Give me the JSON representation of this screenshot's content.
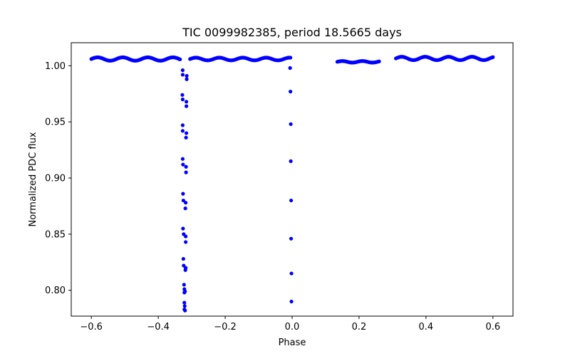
{
  "chart_data": {
    "type": "scatter",
    "title": "TIC 0099982385, period 18.5665 days",
    "xlabel": "Phase",
    "ylabel": "Normalized PDC flux",
    "xlim": [
      -0.66,
      0.66
    ],
    "ylim": [
      0.777,
      1.0205
    ],
    "xticks": [
      -0.6,
      -0.4,
      -0.2,
      0.0,
      0.2,
      0.4,
      0.6
    ],
    "xtick_labels": [
      "−0.6",
      "−0.4",
      "−0.2",
      "0.0",
      "0.2",
      "0.4",
      "0.6"
    ],
    "yticks": [
      0.8,
      0.85,
      0.9,
      0.95,
      1.0
    ],
    "ytick_labels": [
      "0.80",
      "0.85",
      "0.90",
      "0.95",
      "1.00"
    ],
    "grid": false,
    "series": [
      {
        "name": "flux",
        "color": "#0000ff",
        "marker": "circle",
        "baseline_segments": [
          {
            "x_start": -0.6,
            "x_end": -0.335,
            "level": 1.006,
            "amp": 0.0015,
            "cycle": 0.075
          },
          {
            "x_start": -0.305,
            "x_end": -0.005,
            "level": 1.006,
            "amp": 0.0012,
            "cycle": 0.07
          },
          {
            "x_start": 0.135,
            "x_end": 0.26,
            "level": 1.0035,
            "amp": 0.0007,
            "cycle": 0.06
          },
          {
            "x_start": 0.31,
            "x_end": 0.6,
            "level": 1.0065,
            "amp": 0.0015,
            "cycle": 0.07
          }
        ],
        "eclipse_points": [
          {
            "x": -0.327,
            "y": 0.996
          },
          {
            "x": -0.327,
            "y": 0.992
          },
          {
            "x": -0.328,
            "y": 0.974
          },
          {
            "x": -0.327,
            "y": 0.97
          },
          {
            "x": -0.327,
            "y": 0.947
          },
          {
            "x": -0.327,
            "y": 0.942
          },
          {
            "x": -0.327,
            "y": 0.917
          },
          {
            "x": -0.326,
            "y": 0.912
          },
          {
            "x": -0.326,
            "y": 0.886
          },
          {
            "x": -0.325,
            "y": 0.88
          },
          {
            "x": -0.326,
            "y": 0.855
          },
          {
            "x": -0.324,
            "y": 0.85
          },
          {
            "x": -0.325,
            "y": 0.828
          },
          {
            "x": -0.324,
            "y": 0.822
          },
          {
            "x": -0.323,
            "y": 0.805
          },
          {
            "x": -0.322,
            "y": 0.801
          },
          {
            "x": -0.322,
            "y": 0.798
          },
          {
            "x": -0.322,
            "y": 0.789
          },
          {
            "x": -0.321,
            "y": 0.786
          },
          {
            "x": -0.322,
            "y": 0.783
          },
          {
            "x": -0.32,
            "y": 0.782
          },
          {
            "x": -0.32,
            "y": 0.799
          },
          {
            "x": -0.319,
            "y": 0.818
          },
          {
            "x": -0.318,
            "y": 0.82
          },
          {
            "x": -0.318,
            "y": 0.843
          },
          {
            "x": -0.318,
            "y": 0.848
          },
          {
            "x": -0.319,
            "y": 0.873
          },
          {
            "x": -0.318,
            "y": 0.878
          },
          {
            "x": -0.317,
            "y": 0.905
          },
          {
            "x": -0.317,
            "y": 0.91
          },
          {
            "x": -0.317,
            "y": 0.936
          },
          {
            "x": -0.316,
            "y": 0.94
          },
          {
            "x": -0.316,
            "y": 0.964
          },
          {
            "x": -0.316,
            "y": 0.968
          },
          {
            "x": -0.315,
            "y": 0.988
          },
          {
            "x": -0.315,
            "y": 0.991
          },
          {
            "x": -0.006,
            "y": 0.998
          },
          {
            "x": -0.005,
            "y": 0.977
          },
          {
            "x": -0.004,
            "y": 0.948
          },
          {
            "x": -0.004,
            "y": 0.915
          },
          {
            "x": -0.003,
            "y": 0.88
          },
          {
            "x": -0.003,
            "y": 0.846
          },
          {
            "x": -0.002,
            "y": 0.815
          },
          {
            "x": -0.002,
            "y": 0.79
          }
        ]
      }
    ]
  }
}
